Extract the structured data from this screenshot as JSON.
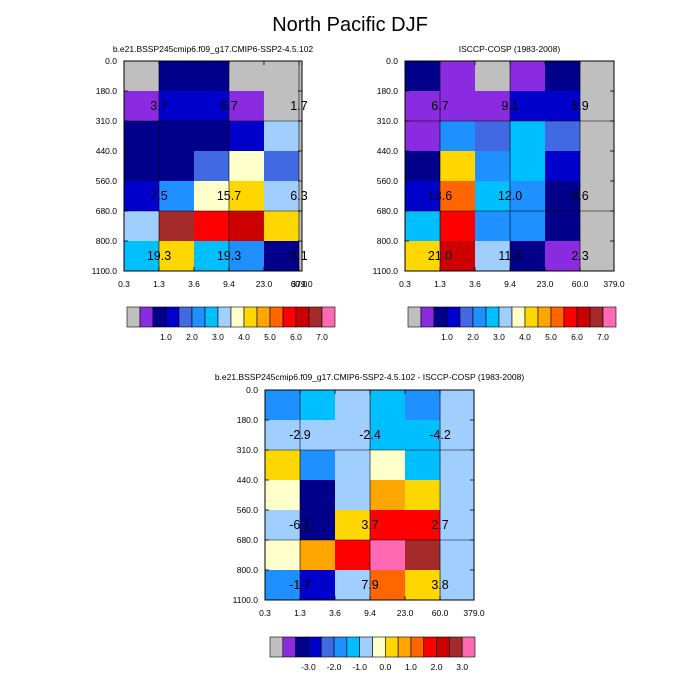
{
  "title": "North Pacific DJF",
  "colors": {
    "missing": "#bfbfbf",
    "palette": [
      "#8a2be2",
      "#00008b",
      "#0000cd",
      "#4169e1",
      "#1e90ff",
      "#00bfff",
      "#a0cfff",
      "#ffffcc",
      "#ffd700",
      "#ffa500",
      "#ff6600",
      "#ff0000",
      "#cc0000",
      "#a52a2a",
      "#ff69b4"
    ],
    "grid": "#000000"
  },
  "chart_data": [
    {
      "type": "heatmap",
      "name": "model",
      "title": "b.e21.BSSP245cmip6.f09_g17.CMIP6-SSP2-4.5.102",
      "x_ticks": [
        "0.3",
        "1.3",
        "3.6",
        "9.4",
        "23.0",
        "60.0",
        "379.0"
      ],
      "y_ticks": [
        "0.0",
        "180.0",
        "310.0",
        "440.0",
        "560.0",
        "680.0",
        "800.0",
        "1100.0"
      ],
      "cells": [
        [
          -1,
          1,
          1,
          -1,
          -1,
          -1
        ],
        [
          0,
          2,
          2,
          0,
          -1,
          -1
        ],
        [
          1,
          1,
          1,
          2,
          6,
          -1
        ],
        [
          1,
          1,
          3,
          7,
          3,
          -1
        ],
        [
          2,
          4,
          7,
          8,
          6,
          -1
        ],
        [
          6,
          13,
          11,
          12,
          8,
          -1
        ],
        [
          5,
          8,
          5,
          4,
          1,
          -1
        ]
      ],
      "labels": [
        {
          "text": "3.7",
          "row": 1,
          "col": 0.5
        },
        {
          "text": "6.7",
          "row": 1,
          "col": 2.5
        },
        {
          "text": "1.7",
          "row": 1,
          "col": 4.5
        },
        {
          "text": "7.5",
          "row": 4,
          "col": 0.5
        },
        {
          "text": "15.7",
          "row": 4,
          "col": 2.5
        },
        {
          "text": "6.3",
          "row": 4,
          "col": 4.5
        },
        {
          "text": "19.3",
          "row": 6,
          "col": 0.5
        },
        {
          "text": "19.3",
          "row": 6,
          "col": 2.5
        },
        {
          "text": "6.1",
          "row": 6,
          "col": 4.5
        }
      ],
      "colorbar": {
        "ticks": [
          "1.0",
          "2.0",
          "3.0",
          "4.0",
          "5.0",
          "6.0",
          "7.0"
        ]
      }
    },
    {
      "type": "heatmap",
      "name": "obs",
      "title": "ISCCP-COSP (1983-2008)",
      "x_ticks": [
        "0.3",
        "1.3",
        "3.6",
        "9.4",
        "23.0",
        "60.0",
        "379.0"
      ],
      "y_ticks": [
        "0.0",
        "180.0",
        "310.0",
        "440.0",
        "560.0",
        "680.0",
        "800.0",
        "1100.0"
      ],
      "cells": [
        [
          1,
          0,
          -1,
          0,
          1,
          -1
        ],
        [
          0,
          0,
          0,
          2,
          2,
          -1
        ],
        [
          0,
          4,
          3,
          5,
          3,
          -1
        ],
        [
          1,
          8,
          4,
          5,
          2,
          -1
        ],
        [
          2,
          10,
          5,
          4,
          1,
          -1
        ],
        [
          5,
          11,
          4,
          4,
          1,
          -1
        ],
        [
          8,
          12,
          6,
          1,
          0,
          -1
        ]
      ],
      "labels": [
        {
          "text": "6.7",
          "row": 1,
          "col": 0.5
        },
        {
          "text": "9.1",
          "row": 1,
          "col": 2.5
        },
        {
          "text": "5.9",
          "row": 1,
          "col": 4.5
        },
        {
          "text": "13.6",
          "row": 4,
          "col": 0.5
        },
        {
          "text": "12.0",
          "row": 4,
          "col": 2.5
        },
        {
          "text": "3.6",
          "row": 4,
          "col": 4.5
        },
        {
          "text": "21.0",
          "row": 6,
          "col": 0.5
        },
        {
          "text": "11.4",
          "row": 6,
          "col": 2.5
        },
        {
          "text": "2.3",
          "row": 6,
          "col": 4.5
        }
      ],
      "colorbar": {
        "ticks": [
          "1.0",
          "2.0",
          "3.0",
          "4.0",
          "5.0",
          "6.0",
          "7.0"
        ]
      }
    },
    {
      "type": "heatmap",
      "name": "diff",
      "title": "b.e21.BSSP245cmip6.f09_g17.CMIP6-SSP2-4.5.102 - ISCCP-COSP (1983-2008)",
      "x_ticks": [
        "0.3",
        "1.3",
        "3.6",
        "9.4",
        "23.0",
        "60.0",
        "379.0"
      ],
      "y_ticks": [
        "0.0",
        "180.0",
        "310.0",
        "440.0",
        "560.0",
        "680.0",
        "800.0",
        "1100.0"
      ],
      "cells": [
        [
          4,
          5,
          6,
          5,
          4,
          6
        ],
        [
          6,
          6,
          6,
          5,
          5,
          6
        ],
        [
          8,
          4,
          6,
          7,
          5,
          6
        ],
        [
          7,
          1,
          6,
          9,
          8,
          6
        ],
        [
          6,
          1,
          8,
          11,
          11,
          6
        ],
        [
          7,
          9,
          11,
          14,
          13,
          6
        ],
        [
          4,
          2,
          6,
          10,
          8,
          6
        ]
      ],
      "labels": [
        {
          "text": "-2.9",
          "row": 1,
          "col": 0.5
        },
        {
          "text": "-2.4",
          "row": 1,
          "col": 2.5
        },
        {
          "text": "-4.2",
          "row": 1,
          "col": 4.5
        },
        {
          "text": "-6.1",
          "row": 4,
          "col": 0.5
        },
        {
          "text": "3.7",
          "row": 4,
          "col": 2.5
        },
        {
          "text": "2.7",
          "row": 4,
          "col": 4.5
        },
        {
          "text": "-1.7",
          "row": 6,
          "col": 0.5
        },
        {
          "text": "7.9",
          "row": 6,
          "col": 2.5
        },
        {
          "text": "3.8",
          "row": 6,
          "col": 4.5
        }
      ],
      "colorbar": {
        "ticks": [
          "-3.0",
          "-2.0",
          "-1.0",
          "0.0",
          "1.0",
          "2.0",
          "3.0"
        ]
      }
    }
  ]
}
